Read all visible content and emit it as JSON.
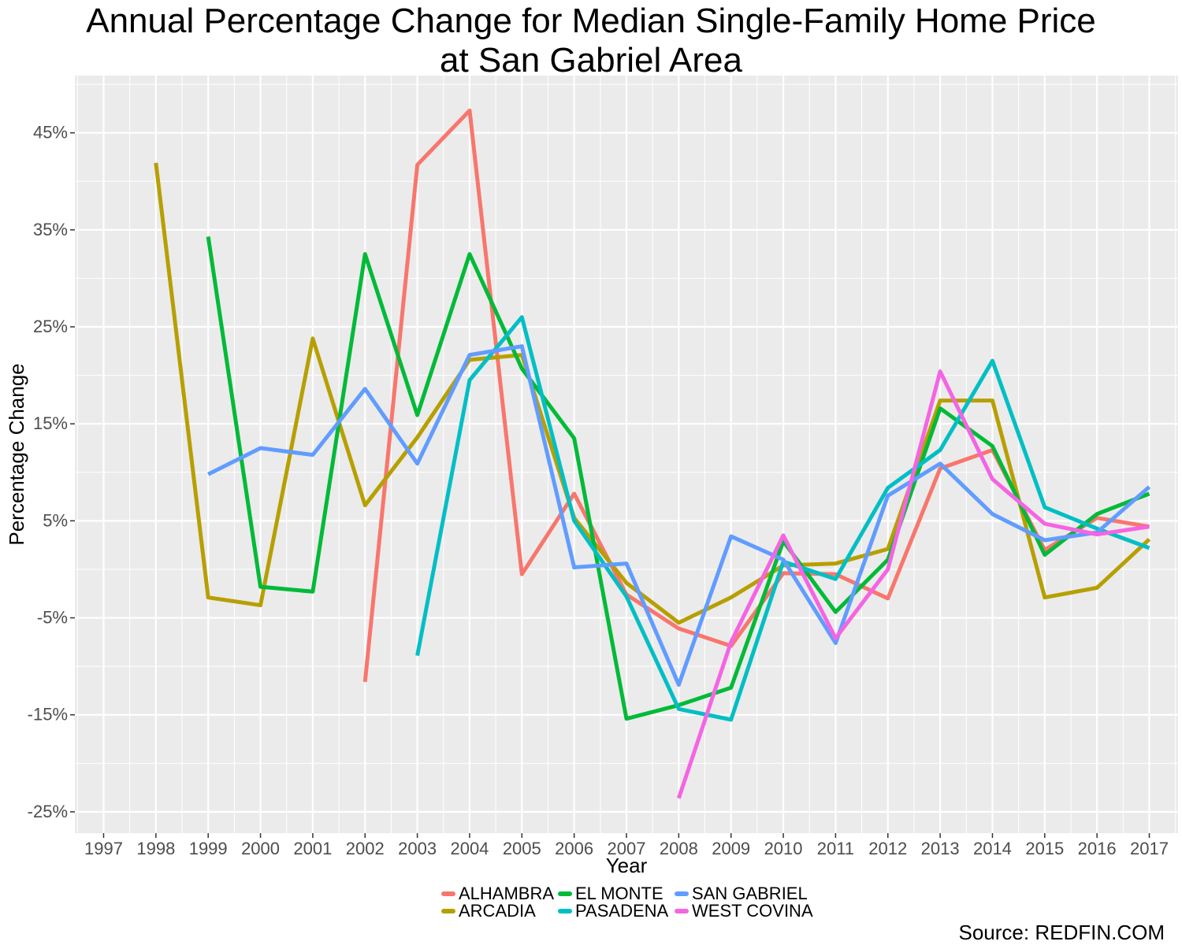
{
  "chart_data": {
    "type": "line",
    "title_line1": "Annual Percentage Change for Median Single-Family Home Price",
    "title_line2": "at San Gabriel Area",
    "xlabel": "Year",
    "ylabel": "Percentage Change",
    "caption": "Source: REDFIN.COM",
    "x": [
      1997,
      1998,
      1999,
      2000,
      2001,
      2002,
      2003,
      2004,
      2005,
      2006,
      2007,
      2008,
      2009,
      2010,
      2011,
      2012,
      2013,
      2014,
      2015,
      2016,
      2017
    ],
    "x_tick_labels": [
      "1997",
      "1998",
      "1999",
      "2000",
      "2001",
      "2002",
      "2003",
      "2004",
      "2005",
      "2006",
      "2007",
      "2008",
      "2009",
      "2010",
      "2011",
      "2012",
      "2013",
      "2014",
      "2015",
      "2016",
      "2017"
    ],
    "y_ticks": [
      45,
      35,
      25,
      15,
      5,
      -5,
      -15,
      -25
    ],
    "y_tick_labels": [
      "45%",
      "35%",
      "25%",
      "15%",
      "5%",
      "-5%",
      "-15%",
      "-25%"
    ],
    "xlim": [
      1996.45,
      1997.55
    ],
    "ylim": [
      -27.2,
      50.9
    ],
    "grid": true,
    "legend_position": "bottom",
    "series": [
      {
        "name": "ALHAMBRA",
        "color": "#F8766D",
        "values": [
          null,
          null,
          null,
          null,
          null,
          -11.6,
          41.7,
          47.3,
          -0.5,
          7.8,
          -2.6,
          -6.1,
          -7.9,
          -0.4,
          -0.5,
          -3.0,
          10.4,
          12.3,
          2.0,
          5.3,
          4.4
        ]
      },
      {
        "name": "ARCADIA",
        "color": "#B79F00",
        "values": [
          null,
          41.9,
          -2.9,
          -3.7,
          23.8,
          6.6,
          13.6,
          21.6,
          22.1,
          5.3,
          -1.4,
          -5.5,
          -2.9,
          0.4,
          0.6,
          2.1,
          17.4,
          17.4,
          -2.9,
          -1.9,
          3.1
        ]
      },
      {
        "name": "EL MONTE",
        "color": "#00BA38",
        "values": [
          null,
          null,
          34.3,
          -1.8,
          -2.3,
          32.5,
          15.9,
          32.5,
          20.7,
          13.5,
          -15.4,
          -14.0,
          -12.2,
          2.9,
          -4.4,
          1.0,
          16.6,
          12.7,
          1.5,
          5.7,
          7.8
        ]
      },
      {
        "name": "PASADENA",
        "color": "#00BFC4",
        "values": [
          null,
          null,
          null,
          null,
          null,
          null,
          -8.9,
          19.5,
          26.0,
          5.0,
          -2.8,
          -14.4,
          -15.5,
          0.8,
          -1.0,
          8.4,
          12.3,
          21.5,
          6.4,
          4.2,
          2.2
        ]
      },
      {
        "name": "SAN GABRIEL",
        "color": "#619CFF",
        "values": [
          null,
          null,
          9.8,
          12.5,
          11.8,
          18.6,
          10.9,
          22.1,
          23.0,
          0.2,
          0.6,
          -11.9,
          3.4,
          1.0,
          -7.6,
          7.6,
          10.9,
          5.7,
          3.0,
          3.8,
          8.5
        ]
      },
      {
        "name": "WEST COVINA",
        "color": "#F564E3",
        "values": [
          null,
          null,
          null,
          null,
          null,
          null,
          null,
          null,
          null,
          null,
          null,
          -23.6,
          -7.5,
          3.5,
          -7.1,
          0.0,
          20.4,
          9.3,
          4.7,
          3.6,
          4.4
        ]
      }
    ]
  }
}
